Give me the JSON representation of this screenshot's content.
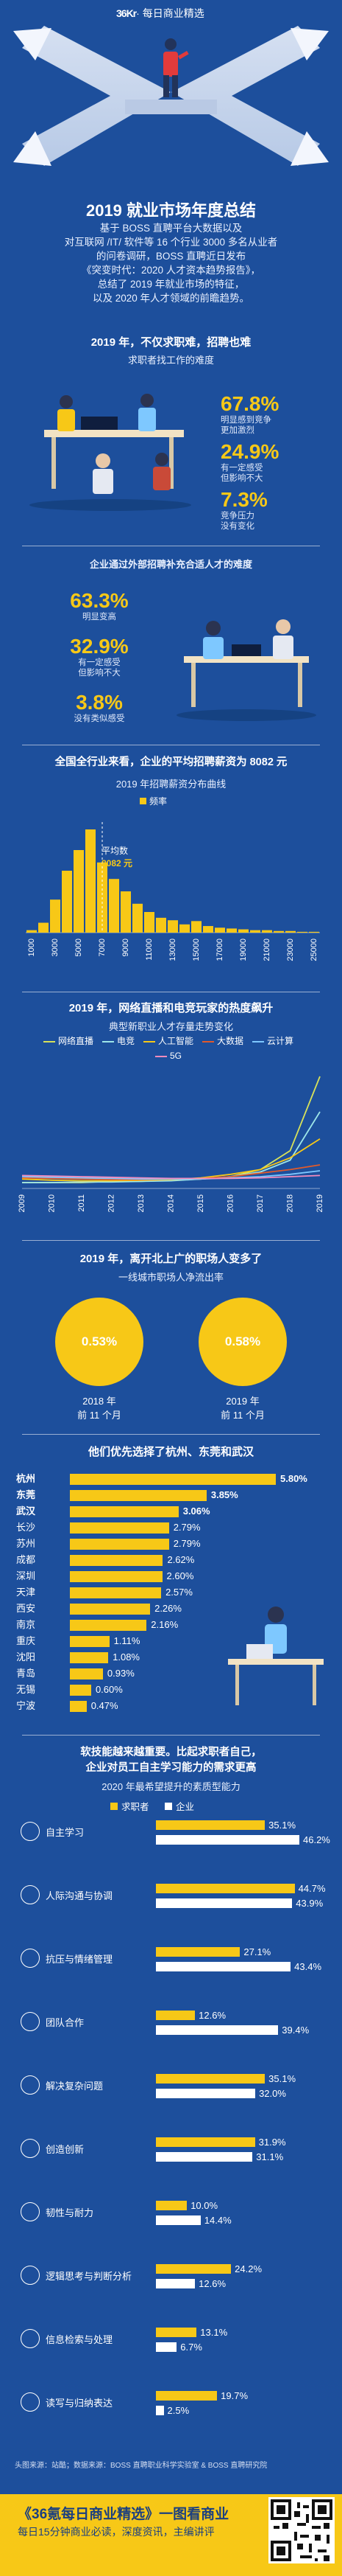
{
  "header": {
    "brand_mark": "36Kr",
    "brand_text": "· 每日商业精选"
  },
  "hero": {
    "title": "2019 就业市场年度总结"
  },
  "intro": {
    "lines": [
      "基于 BOSS 直聘平台大数据以及",
      "对互联网 /IT/ 软件等 16 个行业 3000 多名从业者",
      "的问卷调研，BOSS 直聘近日发布",
      "《突变时代：2020 人才资本趋势报告》，",
      "总结了 2019 年就业市场的特征，",
      "以及 2020 年人才领域的前瞻趋势。"
    ]
  },
  "s1": {
    "heading": "2019 年，不仅求职难，招聘也难",
    "subheading": "求职者找工作的难度",
    "stats": [
      {
        "value": "67.8%",
        "l1": "明显感到竞争",
        "l2": "更加激烈"
      },
      {
        "value": "24.9%",
        "l1": "有一定感受",
        "l2": "但影响不大"
      },
      {
        "value": "7.3%",
        "l1": "竞争压力",
        "l2": "没有变化"
      }
    ]
  },
  "s2": {
    "subheading": "企业通过外部招聘补充合适人才的难度",
    "stats": [
      {
        "value": "63.3%",
        "l1": "明显变高",
        "l2": ""
      },
      {
        "value": "32.9%",
        "l1": "有一定感受",
        "l2": "但影响不大"
      },
      {
        "value": "3.8%",
        "l1": "没有类似感受",
        "l2": ""
      }
    ]
  },
  "s3": {
    "heading": "全国全行业来看，企业的平均招聘薪资为 8082 元",
    "subheading": "2019 年招聘薪资分布曲线",
    "legend": "频率",
    "annotation_l1": "平均数",
    "annotation_l2": "8082 元"
  },
  "s4": {
    "heading": "2019 年，网络直播和电竞玩家的热度飙升",
    "subheading": "典型新职业人才存量走势变化"
  },
  "s5": {
    "heading": "2019 年，离开北上广的职场人变多了",
    "subheading": "一线城市职场人净流出率",
    "circles": [
      {
        "value": "0.53%",
        "l1": "2018 年",
        "l2": "前 11 个月"
      },
      {
        "value": "0.58%",
        "l1": "2019 年",
        "l2": "前 11 个月"
      }
    ]
  },
  "s6": {
    "heading": "他们优先选择了杭州、东莞和武汉",
    "cities": [
      {
        "name": "杭州",
        "value": 5.8,
        "label": "5.80%",
        "bold": true
      },
      {
        "name": "东莞",
        "value": 3.85,
        "label": "3.85%",
        "bold": true
      },
      {
        "name": "武汉",
        "value": 3.06,
        "label": "3.06%",
        "bold": true
      },
      {
        "name": "长沙",
        "value": 2.79,
        "label": "2.79%",
        "bold": false
      },
      {
        "name": "苏州",
        "value": 2.79,
        "label": "2.79%",
        "bold": false
      },
      {
        "name": "成都",
        "value": 2.62,
        "label": "2.62%",
        "bold": false
      },
      {
        "name": "深圳",
        "value": 2.6,
        "label": "2.60%",
        "bold": false
      },
      {
        "name": "天津",
        "value": 2.57,
        "label": "2.57%",
        "bold": false
      },
      {
        "name": "西安",
        "value": 2.26,
        "label": "2.26%",
        "bold": false
      },
      {
        "name": "南京",
        "value": 2.16,
        "label": "2.16%",
        "bold": false
      },
      {
        "name": "重庆",
        "value": 1.11,
        "label": "1.11%",
        "bold": false
      },
      {
        "name": "沈阳",
        "value": 1.08,
        "label": "1.08%",
        "bold": false
      },
      {
        "name": "青岛",
        "value": 0.93,
        "label": "0.93%",
        "bold": false
      },
      {
        "name": "无锡",
        "value": 0.6,
        "label": "0.60%",
        "bold": false
      },
      {
        "name": "宁波",
        "value": 0.47,
        "label": "0.47%",
        "bold": false
      }
    ]
  },
  "s7": {
    "heading_l1": "软技能越来越重要。比起求职者自己，",
    "heading_l2": "企业对员工自主学习能力的需求更高",
    "subheading": "2020 年最希望提升的素质型能力",
    "legend_a": "求职者",
    "legend_b": "企业",
    "colors": {
      "seeker": "#f7c817",
      "company": "#ffffff"
    },
    "skills": [
      {
        "name": "自主学习",
        "seeker": 35.1,
        "company": 46.2,
        "seeker_label": "35.1%",
        "company_label": "46.2%"
      },
      {
        "name": "人际沟通与协调",
        "seeker": 44.7,
        "company": 43.9,
        "seeker_label": "44.7%",
        "company_label": "43.9%"
      },
      {
        "name": "抗压与情绪管理",
        "seeker": 27.1,
        "company": 43.4,
        "seeker_label": "27.1%",
        "company_label": "43.4%"
      },
      {
        "name": "团队合作",
        "seeker": 12.6,
        "company": 39.4,
        "seeker_label": "12.6%",
        "company_label": "39.4%"
      },
      {
        "name": "解决复杂问题",
        "seeker": 35.1,
        "company": 32.0,
        "seeker_label": "35.1%",
        "company_label": "32.0%"
      },
      {
        "name": "创造创新",
        "seeker": 31.9,
        "company": 31.1,
        "seeker_label": "31.9%",
        "company_label": "31.1%"
      },
      {
        "name": "韧性与耐力",
        "seeker": 10.0,
        "company": 14.4,
        "seeker_label": "10.0%",
        "company_label": "14.4%"
      },
      {
        "name": "逻辑思考与判断分析",
        "seeker": 24.2,
        "company": 12.6,
        "seeker_label": "24.2%",
        "company_label": "12.6%"
      },
      {
        "name": "信息检索与处理",
        "seeker": 13.1,
        "company": 6.7,
        "seeker_label": "13.1%",
        "company_label": "6.7%"
      },
      {
        "name": "读写与归纳表达",
        "seeker": 19.7,
        "company": 2.5,
        "seeker_label": "19.7%",
        "company_label": "2.5%"
      }
    ]
  },
  "sources": "头图来源：站酷；数据来源：BOSS 直聘职业科学实验室 & BOSS 直聘研究院",
  "footer": {
    "title": "《36氪每日商业精选》一图看商业",
    "subtitle": "每日15分钟商业必读，深度资讯，主编讲评"
  },
  "chart_data": [
    {
      "type": "area",
      "title": "2019 年招聘薪资分布曲线",
      "legend": [
        "频率"
      ],
      "x": [
        1000,
        2000,
        3000,
        4000,
        5000,
        6000,
        7000,
        8000,
        9000,
        10000,
        11000,
        12000,
        13000,
        14000,
        15000,
        16000,
        17000,
        18000,
        19000,
        20000,
        21000,
        22000,
        23000,
        24000,
        25000
      ],
      "tick_labels": [
        "1000",
        "3000",
        "5000",
        "7000",
        "9000",
        "11000",
        "13000",
        "15000",
        "17000",
        "19000",
        "21000",
        "23000",
        "25000"
      ],
      "values": [
        0.3,
        1.2,
        4.0,
        7.5,
        10.0,
        12.5,
        8.5,
        6.5,
        5.0,
        3.5,
        2.5,
        1.8,
        1.5,
        1.0,
        1.4,
        0.8,
        0.6,
        0.5,
        0.4,
        0.3,
        0.3,
        0.2,
        0.2,
        0.1,
        0.1
      ],
      "annotation": "平均数 8082 元"
    },
    {
      "type": "line",
      "title": "典型新职业人才存量走势变化",
      "x": [
        "2009",
        "2010",
        "2011",
        "2012",
        "2013",
        "2014",
        "2015",
        "2016",
        "2017",
        "2018",
        "2019"
      ],
      "series": [
        {
          "name": "网络直播",
          "color": "#d8e25a",
          "values": [
            0.5,
            0.5,
            0.5,
            0.6,
            0.6,
            0.7,
            0.8,
            1.0,
            1.6,
            3.2,
            9.5
          ]
        },
        {
          "name": "电竞",
          "color": "#9ee6e8",
          "values": [
            0.5,
            0.5,
            0.55,
            0.55,
            0.6,
            0.65,
            0.8,
            1.0,
            1.4,
            2.4,
            6.5
          ]
        },
        {
          "name": "人工智能",
          "color": "#f7c817",
          "values": [
            0.8,
            0.7,
            0.65,
            0.65,
            0.7,
            0.75,
            0.9,
            1.2,
            1.6,
            2.6,
            4.2
          ]
        },
        {
          "name": "大数据",
          "color": "#e05a2b",
          "values": [
            0.9,
            0.85,
            0.8,
            0.75,
            0.75,
            0.8,
            0.85,
            1.0,
            1.3,
            1.6,
            2.0
          ]
        },
        {
          "name": "云计算",
          "color": "#7ec8ff",
          "values": [
            1.0,
            0.95,
            0.9,
            0.85,
            0.8,
            0.8,
            0.8,
            0.9,
            1.0,
            1.2,
            1.5
          ]
        },
        {
          "name": "5G",
          "color": "#f28bbd",
          "values": [
            1.1,
            1.05,
            1.0,
            0.95,
            0.9,
            0.85,
            0.85,
            0.85,
            0.9,
            1.0,
            1.1
          ]
        }
      ]
    }
  ]
}
